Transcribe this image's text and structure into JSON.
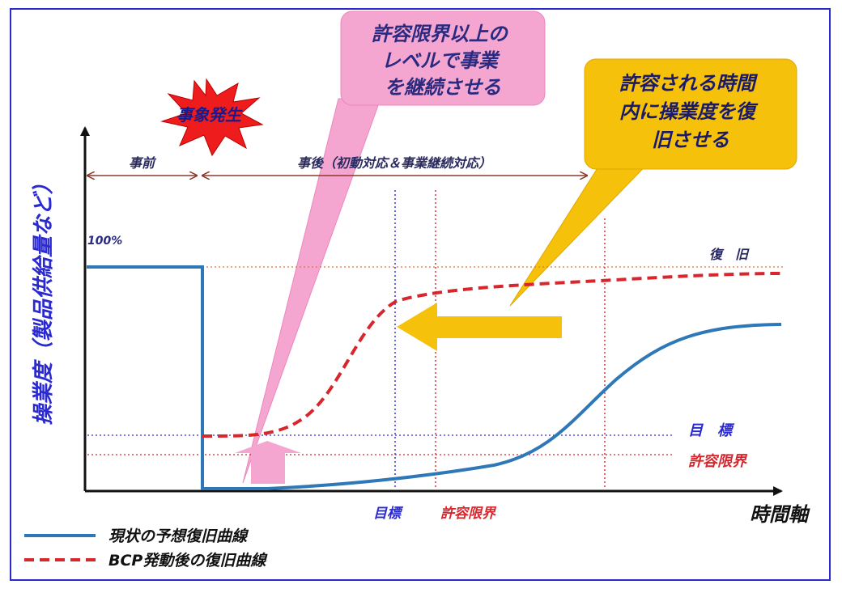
{
  "colors": {
    "frame": "#2a2ad0",
    "current_curve": "#2f78b8",
    "bcp_curve": "#d8262d",
    "axis": "#111111",
    "target": "#2a2ad0",
    "limit": "#d8262d",
    "restore_line": "#e0743a",
    "pink_callout": "#f4a6d0",
    "yellow_callout": "#f6c10a",
    "burst": "#ee1c1c",
    "timeline_arrow": "#8b3a2a"
  },
  "labels": {
    "y_axis": "操業度（製品供給量など）",
    "x_axis": "時間軸",
    "hundred_percent": "100%",
    "event": "事象発生",
    "before": "事前",
    "after": "事後（初動対応＆事業継続対応）",
    "restore": "復　旧",
    "target_right": "目　標",
    "limit_right": "許容限界",
    "target_bottom": "目標",
    "limit_bottom": "許容限界"
  },
  "callouts": {
    "pink": [
      "許容限界以上の",
      "レベルで事業",
      "を継続させる"
    ],
    "yellow": [
      "許容される時間",
      "内に操業度を復",
      "旧させる"
    ]
  },
  "legend": {
    "current": "現状の予想復旧曲線",
    "bcp": "BCP発動後の復旧曲線"
  },
  "icons": [
    "explosion-burst-icon",
    "up-arrow-icon",
    "left-arrow-icon"
  ]
}
